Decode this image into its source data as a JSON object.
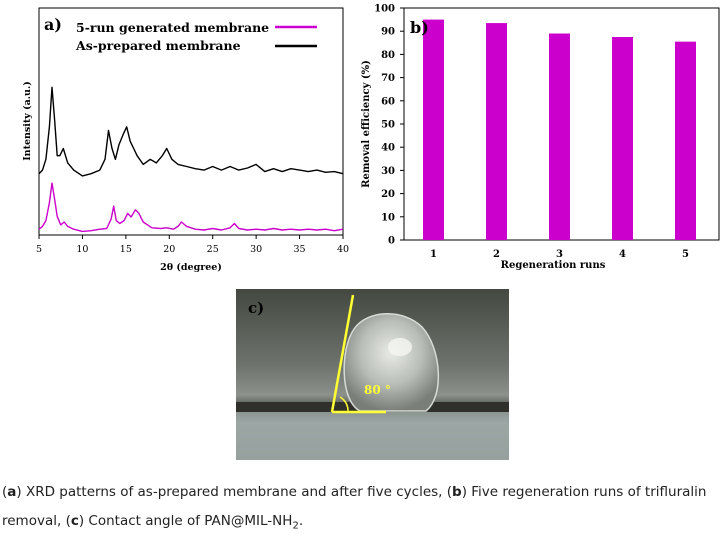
{
  "chart_data": [
    {
      "type": "line",
      "panel_label": "a)",
      "xlabel": "2θ (degree)",
      "ylabel": "Intensity (a.u.)",
      "xlim": [
        5,
        40
      ],
      "xticks": [
        "5",
        "10",
        "15",
        "20",
        "25",
        "30",
        "35",
        "40"
      ],
      "legend_position": "top",
      "series": [
        {
          "name": "5-run generated membrane",
          "color": "#cc00cc",
          "x": [
            5,
            5.4,
            5.8,
            6.2,
            6.5,
            6.8,
            7.1,
            7.5,
            7.9,
            8.3,
            9,
            10,
            11,
            12,
            12.8,
            13.3,
            13.6,
            13.9,
            14.3,
            14.8,
            15.2,
            15.6,
            16.1,
            16.5,
            17,
            18,
            19,
            19.7,
            20.5,
            21,
            21.4,
            22,
            23,
            24,
            25,
            26,
            27,
            27.5,
            28,
            29,
            30,
            31,
            32,
            33,
            34,
            35,
            36,
            37,
            38,
            39,
            40
          ],
          "y": [
            0.08,
            0.12,
            0.2,
            0.45,
            0.72,
            0.5,
            0.26,
            0.14,
            0.18,
            0.12,
            0.08,
            0.05,
            0.06,
            0.08,
            0.09,
            0.22,
            0.4,
            0.2,
            0.16,
            0.2,
            0.3,
            0.25,
            0.35,
            0.3,
            0.18,
            0.1,
            0.09,
            0.1,
            0.08,
            0.12,
            0.18,
            0.12,
            0.08,
            0.07,
            0.09,
            0.07,
            0.1,
            0.16,
            0.09,
            0.07,
            0.08,
            0.07,
            0.09,
            0.07,
            0.08,
            0.07,
            0.08,
            0.07,
            0.08,
            0.06,
            0.08
          ]
        },
        {
          "name": "As-prepared membrane",
          "color": "#000000",
          "x": [
            5,
            5.4,
            5.8,
            6.2,
            6.5,
            6.8,
            7.1,
            7.4,
            7.8,
            8.3,
            9,
            10,
            11,
            12,
            12.6,
            13,
            13.4,
            13.8,
            14.2,
            14.7,
            15.1,
            15.5,
            15.9,
            16.3,
            17,
            17.8,
            18.5,
            19.2,
            19.7,
            20.3,
            21,
            22,
            23,
            24,
            25,
            26,
            27,
            28,
            29,
            30,
            31,
            32,
            33,
            34,
            35,
            36,
            37,
            38,
            39,
            40
          ],
          "y": [
            0.85,
            0.9,
            1.05,
            1.5,
            2.05,
            1.6,
            1.1,
            1.1,
            1.2,
            1.0,
            0.9,
            0.82,
            0.85,
            0.9,
            1.05,
            1.45,
            1.2,
            1.05,
            1.25,
            1.4,
            1.5,
            1.3,
            1.2,
            1.1,
            0.98,
            1.05,
            1.0,
            1.1,
            1.2,
            1.05,
            0.98,
            0.95,
            0.92,
            0.9,
            0.95,
            0.9,
            0.95,
            0.9,
            0.93,
            0.98,
            0.88,
            0.92,
            0.88,
            0.92,
            0.9,
            0.88,
            0.9,
            0.87,
            0.88,
            0.85
          ]
        }
      ]
    },
    {
      "type": "bar",
      "panel_label": "b)",
      "xlabel": "Regeneration runs",
      "ylabel": "Removal efficiency (%)",
      "ylim": [
        0,
        100
      ],
      "yticks": [
        "0",
        "10",
        "20",
        "30",
        "40",
        "50",
        "60",
        "70",
        "80",
        "90",
        "100"
      ],
      "categories": [
        "1",
        "2",
        "3",
        "4",
        "5"
      ],
      "values": [
        95,
        93.5,
        89,
        87.5,
        85.5
      ],
      "color": "#cc00cc"
    }
  ],
  "photo": {
    "panel_label": "c)",
    "angle_label": "80 °",
    "line_color": "#ffff33"
  },
  "caption": {
    "a_label": "a",
    "a_text": ") XRD patterns of as-prepared membrane and after five cycles, (",
    "b_label": "b",
    "b_text": ") Five regeneration runs of trifluralin removal, (",
    "c_label": "c",
    "c_text": ") Contact angle of PAN@MIL-NH",
    "c_sub": "2",
    "c_end": "."
  }
}
